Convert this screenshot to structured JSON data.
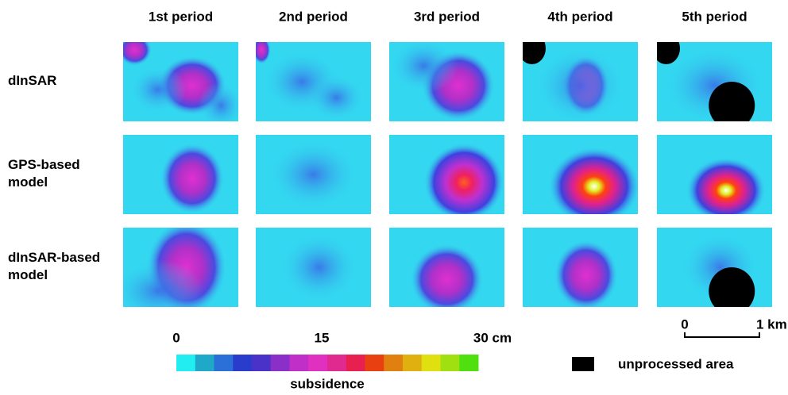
{
  "columns": [
    "1st period",
    "2nd period",
    "3rd period",
    "4th period",
    "5th period"
  ],
  "rows": [
    "dInSAR",
    "GPS-based\nmodel",
    "dInSAR-based\nmodel"
  ],
  "colorbar": {
    "ticks": [
      "0",
      "15",
      "30 cm"
    ],
    "label": "subsidence",
    "colors": [
      "#22eef2",
      "#1fa8c8",
      "#2a70d8",
      "#2a3ccc",
      "#4a32c8",
      "#8a30c8",
      "#c030c8",
      "#e030c0",
      "#e02a90",
      "#e82050",
      "#e84010",
      "#e08010",
      "#e0b010",
      "#e0e010",
      "#a0e010",
      "#50e010"
    ]
  },
  "legend": "unprocessed area",
  "scale_bar": {
    "start": "0",
    "end": "1 km"
  }
}
